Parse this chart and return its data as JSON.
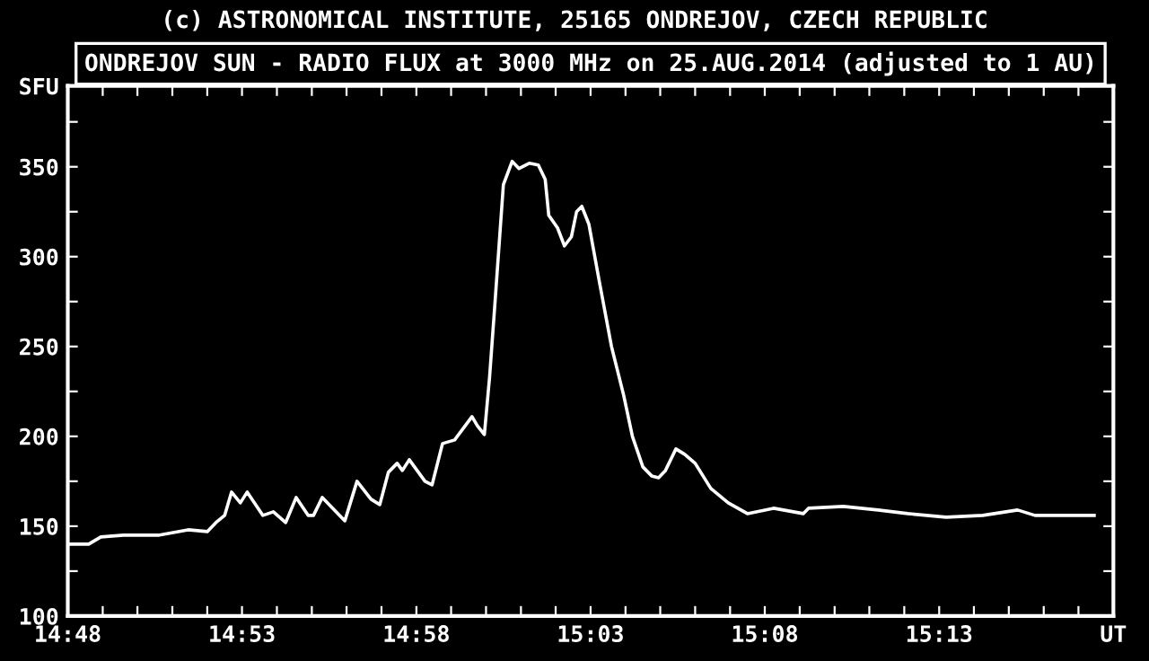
{
  "chart_data": {
    "type": "line",
    "title": "ONDREJOV SUN - RADIO FLUX at 3000 MHz on 25.AUG.2014 (adjusted to 1 AU)",
    "annotations": [
      "(c) ASTRONOMICAL INSTITUTE, 25165 ONDREJOV, CZECH REPUBLIC"
    ],
    "x": [
      14.8,
      14.81,
      14.8158,
      14.8267,
      14.8433,
      14.8575,
      14.8667,
      14.8708,
      14.875,
      14.8783,
      14.8825,
      14.8858,
      14.8933,
      14.8983,
      14.9042,
      14.9092,
      14.915,
      14.9175,
      14.9217,
      14.9325,
      14.9383,
      14.945,
      14.9492,
      14.9533,
      14.9575,
      14.96,
      14.9633,
      14.9708,
      14.9742,
      14.9792,
      14.985,
      14.9933,
      14.9958,
      14.9992,
      15.0017,
      15.0042,
      15.0083,
      15.0125,
      15.0158,
      15.0208,
      15.025,
      15.0283,
      15.03,
      15.0342,
      15.0375,
      15.0408,
      15.0433,
      15.0458,
      15.0492,
      15.0542,
      15.06,
      15.0658,
      15.07,
      15.075,
      15.0792,
      15.0825,
      15.0858,
      15.0908,
      15.095,
      15.1,
      15.1075,
      15.1158,
      15.125,
      15.1375,
      15.1517,
      15.1542,
      15.1708,
      15.1875,
      15.2017,
      15.22,
      15.2375,
      15.2542,
      15.2625,
      15.2767,
      15.2908
    ],
    "series": [
      {
        "color": "#ffffff",
        "values": [
          140,
          140,
          144,
          145,
          145,
          148,
          147,
          152,
          156,
          169,
          163,
          169,
          156,
          158,
          152,
          166,
          156,
          156,
          166,
          153,
          175,
          165,
          162,
          180,
          185,
          181,
          187,
          175,
          173,
          196,
          198,
          211,
          206,
          201,
          233,
          273,
          340,
          353,
          349,
          352,
          351,
          343,
          323,
          316,
          306,
          311,
          325,
          328,
          318,
          286,
          250,
          223,
          200,
          183,
          178,
          177,
          181,
          193,
          190,
          185,
          171,
          163,
          157,
          160,
          157,
          160,
          161,
          159,
          157,
          155,
          156,
          159,
          156,
          156,
          156
        ]
      }
    ],
    "xlim": [
      14.8,
      15.3
    ],
    "xticks": [
      {
        "value": 14.8,
        "label": "14:48"
      },
      {
        "value": 14.8167,
        "label": null
      },
      {
        "value": 14.8333,
        "label": null
      },
      {
        "value": 14.85,
        "label": null
      },
      {
        "value": 14.8667,
        "label": null
      },
      {
        "value": 14.8833,
        "label": "14:53"
      },
      {
        "value": 14.9,
        "label": null
      },
      {
        "value": 14.9167,
        "label": null
      },
      {
        "value": 14.9333,
        "label": null
      },
      {
        "value": 14.95,
        "label": null
      },
      {
        "value": 14.9667,
        "label": "14:58"
      },
      {
        "value": 14.9833,
        "label": null
      },
      {
        "value": 15.0,
        "label": null
      },
      {
        "value": 15.0167,
        "label": null
      },
      {
        "value": 15.0333,
        "label": null
      },
      {
        "value": 15.05,
        "label": "15:03"
      },
      {
        "value": 15.0667,
        "label": null
      },
      {
        "value": 15.0833,
        "label": null
      },
      {
        "value": 15.1,
        "label": null
      },
      {
        "value": 15.1167,
        "label": null
      },
      {
        "value": 15.1333,
        "label": "15:08"
      },
      {
        "value": 15.15,
        "label": null
      },
      {
        "value": 15.1667,
        "label": null
      },
      {
        "value": 15.1833,
        "label": null
      },
      {
        "value": 15.2,
        "label": null
      },
      {
        "value": 15.2167,
        "label": "15:13"
      },
      {
        "value": 15.2333,
        "label": null
      },
      {
        "value": 15.25,
        "label": null
      },
      {
        "value": 15.2667,
        "label": null
      },
      {
        "value": 15.2833,
        "label": null
      },
      {
        "value": 15.3,
        "label": "UT"
      }
    ],
    "ylim": [
      100,
      395
    ],
    "yticks": [
      100,
      {
        "value": 125,
        "label": null
      },
      150,
      {
        "value": 175,
        "label": null
      },
      200,
      {
        "value": 225,
        "label": null
      },
      250,
      {
        "value": 275,
        "label": null
      },
      300,
      {
        "value": 325,
        "label": null
      },
      350,
      {
        "value": 375,
        "label": null
      },
      {
        "value": 395,
        "label": "SFU"
      }
    ],
    "grid": false,
    "legend": false,
    "marker": "none",
    "line_style": "solid"
  }
}
